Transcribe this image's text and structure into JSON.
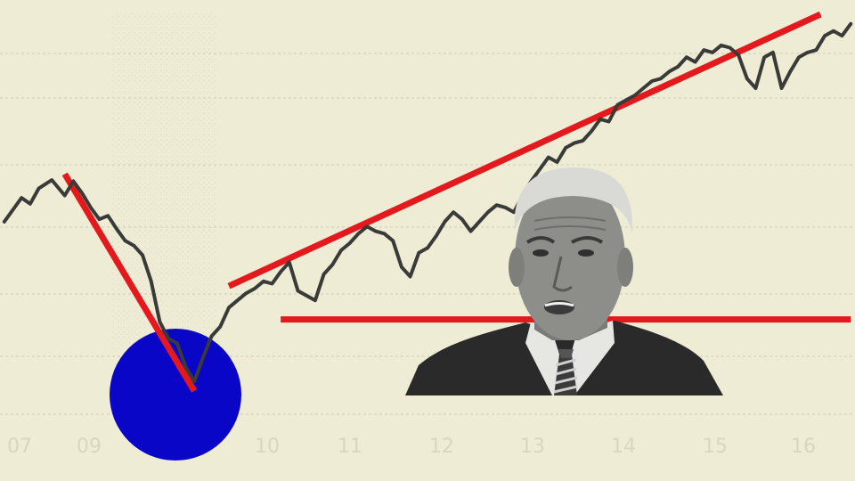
{
  "illustration": {
    "background_color": "#efecd6",
    "line_color": "#3a3a38",
    "accent_red": "#e3191d",
    "accent_blue": "#0a06c8",
    "faint_gridline_color": "#dedbc6"
  },
  "chart_data": {
    "type": "line",
    "categories": [
      "07",
      "09",
      "10",
      "11",
      "12",
      "13",
      "14",
      "15",
      "16"
    ],
    "series": [
      {
        "values": [
          [
            2007.0,
            1370
          ],
          [
            2007.1,
            1420
          ],
          [
            2007.2,
            1470
          ],
          [
            2007.3,
            1445
          ],
          [
            2007.4,
            1510
          ],
          [
            2007.55,
            1545
          ],
          [
            2007.7,
            1480
          ],
          [
            2007.8,
            1540
          ],
          [
            2007.9,
            1490
          ],
          [
            2008.0,
            1430
          ],
          [
            2008.1,
            1380
          ],
          [
            2008.2,
            1395
          ],
          [
            2008.3,
            1340
          ],
          [
            2008.4,
            1290
          ],
          [
            2008.5,
            1270
          ],
          [
            2008.6,
            1230
          ],
          [
            2008.7,
            1120
          ],
          [
            2008.8,
            950
          ],
          [
            2008.9,
            880
          ],
          [
            2009.0,
            860
          ],
          [
            2009.1,
            760
          ],
          [
            2009.2,
            700
          ],
          [
            2009.3,
            800
          ],
          [
            2009.4,
            890
          ],
          [
            2009.5,
            930
          ],
          [
            2009.6,
            1010
          ],
          [
            2009.7,
            1040
          ],
          [
            2009.8,
            1070
          ],
          [
            2009.9,
            1090
          ],
          [
            2010.0,
            1120
          ],
          [
            2010.1,
            1110
          ],
          [
            2010.2,
            1160
          ],
          [
            2010.3,
            1200
          ],
          [
            2010.4,
            1080
          ],
          [
            2010.5,
            1060
          ],
          [
            2010.6,
            1040
          ],
          [
            2010.7,
            1150
          ],
          [
            2010.8,
            1190
          ],
          [
            2010.9,
            1250
          ],
          [
            2011.0,
            1280
          ],
          [
            2011.1,
            1320
          ],
          [
            2011.2,
            1350
          ],
          [
            2011.3,
            1330
          ],
          [
            2011.4,
            1320
          ],
          [
            2011.5,
            1290
          ],
          [
            2011.6,
            1180
          ],
          [
            2011.7,
            1140
          ],
          [
            2011.8,
            1240
          ],
          [
            2011.9,
            1260
          ],
          [
            2012.0,
            1310
          ],
          [
            2012.1,
            1370
          ],
          [
            2012.2,
            1410
          ],
          [
            2012.3,
            1380
          ],
          [
            2012.4,
            1330
          ],
          [
            2012.5,
            1370
          ],
          [
            2012.6,
            1410
          ],
          [
            2012.7,
            1440
          ],
          [
            2012.8,
            1430
          ],
          [
            2012.9,
            1410
          ],
          [
            2013.0,
            1480
          ],
          [
            2013.1,
            1540
          ],
          [
            2013.2,
            1590
          ],
          [
            2013.3,
            1640
          ],
          [
            2013.4,
            1620
          ],
          [
            2013.5,
            1680
          ],
          [
            2013.6,
            1700
          ],
          [
            2013.7,
            1710
          ],
          [
            2013.8,
            1750
          ],
          [
            2013.9,
            1800
          ],
          [
            2014.0,
            1790
          ],
          [
            2014.1,
            1860
          ],
          [
            2014.2,
            1880
          ],
          [
            2014.3,
            1900
          ],
          [
            2014.4,
            1930
          ],
          [
            2014.5,
            1960
          ],
          [
            2014.6,
            1970
          ],
          [
            2014.7,
            2000
          ],
          [
            2014.8,
            2020
          ],
          [
            2014.9,
            2060
          ],
          [
            2015.0,
            2040
          ],
          [
            2015.1,
            2090
          ],
          [
            2015.2,
            2080
          ],
          [
            2015.3,
            2110
          ],
          [
            2015.4,
            2100
          ],
          [
            2015.5,
            2070
          ],
          [
            2015.6,
            1970
          ],
          [
            2015.7,
            1930
          ],
          [
            2015.8,
            2060
          ],
          [
            2015.9,
            2080
          ],
          [
            2016.0,
            1930
          ],
          [
            2016.1,
            2000
          ],
          [
            2016.2,
            2060
          ],
          [
            2016.3,
            2080
          ],
          [
            2016.4,
            2090
          ],
          [
            2016.5,
            2150
          ],
          [
            2016.6,
            2170
          ],
          [
            2016.7,
            2150
          ],
          [
            2016.8,
            2200
          ]
        ]
      }
    ],
    "xlim": [
      2006.95,
      2016.85
    ],
    "ylim": [
      600,
      2300
    ],
    "grid": true,
    "legend": "none",
    "annotations": {
      "decline_trendline": [
        [
          2007.7,
          1570
        ],
        [
          2009.2,
          660
        ]
      ],
      "recovery_trendline": [
        [
          2009.6,
          1100
        ],
        [
          2016.45,
          2240
        ]
      ],
      "baseline_trendline": [
        [
          2010.2,
          960
        ],
        [
          2016.8,
          960
        ]
      ],
      "low_marker": "blue-circle"
    }
  }
}
